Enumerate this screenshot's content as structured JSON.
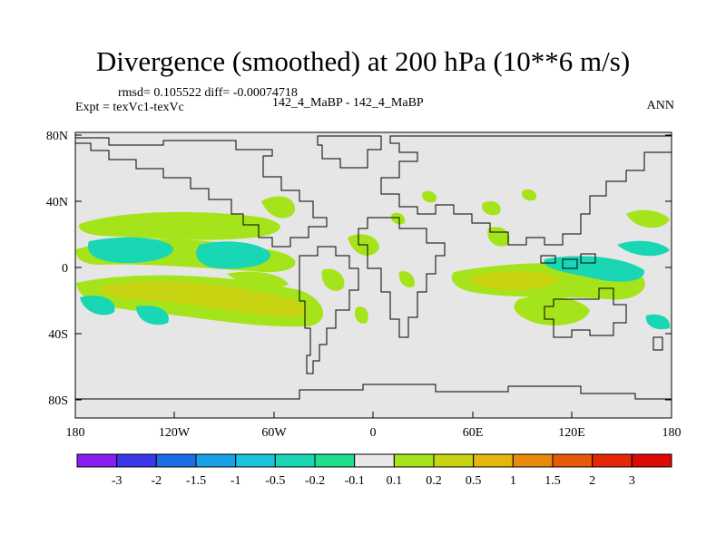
{
  "title": "Divergence (smoothed) at 200 hPa (10**6 m/s)",
  "stats": "rmsd= 0.105522  diff= -0.00074718",
  "expt": "Expt = texVc1-texVc",
  "center_label": "142_4_MaBP - 142_4_MaBP",
  "season": "ANN",
  "y_ticks": [
    "80N",
    "40N",
    "0",
    "40S",
    "80S"
  ],
  "x_ticks": [
    "180",
    "120W",
    "60W",
    "0",
    "60E",
    "120E",
    "180"
  ],
  "colorbar": {
    "labels": [
      "-3",
      "-2",
      "-1.5",
      "-1",
      "-0.5",
      "-0.2",
      "-0.1",
      "0.1",
      "0.2",
      "0.5",
      "1",
      "1.5",
      "2",
      "3"
    ],
    "colors": [
      "#8a1df0",
      "#3a37ea",
      "#1a6ee8",
      "#1aa0e8",
      "#18c3db",
      "#19d6b4",
      "#1ddf8c",
      "#e8e8e8",
      "#a5e31a",
      "#c8d412",
      "#e2b80e",
      "#ea8a0c",
      "#e85a0a",
      "#e42808",
      "#e00a05"
    ]
  },
  "colors": {
    "background": "#e6e6e6",
    "negative_weak": "#1ddf8c",
    "negative_mid": "#19d6b4",
    "positive_weak": "#a5e31a",
    "positive_mid": "#c8d412"
  }
}
